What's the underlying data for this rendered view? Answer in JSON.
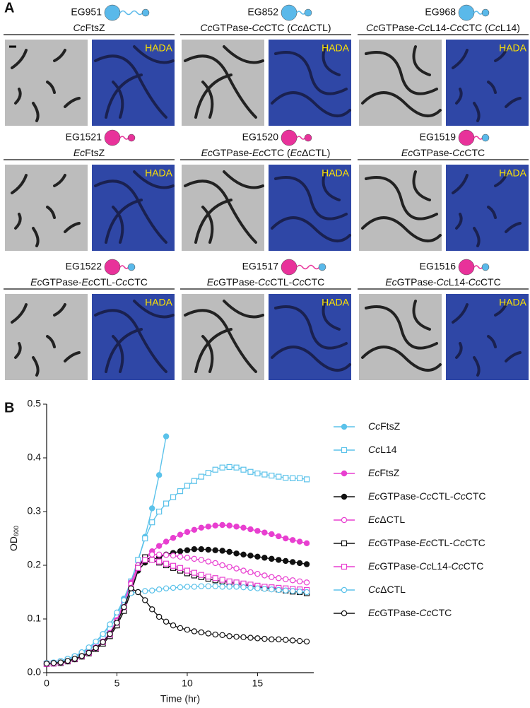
{
  "panel_a": {
    "label": "A",
    "strains": [
      {
        "id": "EG951",
        "construct": "CcFtsZ",
        "stain": "HADA"
      },
      {
        "id": "EG852",
        "construct": "CcGTPase-CcCTC (CcΔCTL)",
        "stain": "HADA"
      },
      {
        "id": "EG968",
        "construct": "CcGTPase-CcL14-CcCTC (CcL14)",
        "stain": "HADA"
      },
      {
        "id": "EG1521",
        "construct": "EcFtsZ",
        "stain": "HADA"
      },
      {
        "id": "EG1520",
        "construct": "EcGTPase-EcCTC (EcΔCTL)",
        "stain": "HADA"
      },
      {
        "id": "EG1519",
        "construct": "EcGTPase-CcCTC",
        "stain": "HADA"
      },
      {
        "id": "EG1522",
        "construct": "EcGTPase-EcCTL-CcCTC",
        "stain": "HADA"
      },
      {
        "id": "EG1517",
        "construct": "EcGTPase-CcCTL-CcCTC",
        "stain": "HADA"
      },
      {
        "id": "EG1516",
        "construct": "EcGTPase-CcL14-CcCTC",
        "stain": "HADA"
      }
    ]
  },
  "chart_data": {
    "type": "line",
    "panel_label": "B",
    "x_label": "Time (hr)",
    "y_label": "OD600",
    "xlim": [
      0,
      19
    ],
    "xticks": [
      0,
      5,
      10,
      15
    ],
    "ylim": [
      0,
      0.5
    ],
    "yticks": [
      {
        "value": 0,
        "label": "0.0"
      },
      0.1,
      0.2,
      0.3,
      0.4,
      0.5
    ],
    "x": [
      0,
      0.5,
      1,
      1.5,
      2,
      2.5,
      3,
      3.5,
      4,
      4.5,
      5,
      5.5,
      6,
      6.5,
      7,
      7.5,
      8,
      8.5,
      9,
      9.5,
      10,
      10.5,
      11,
      11.5,
      12,
      12.5,
      13,
      13.5,
      14,
      14.5,
      15,
      15.5,
      16,
      16.5,
      17,
      17.5,
      18,
      18.5
    ],
    "series": [
      {
        "name": "CcFtsZ",
        "color": "#5bc2ea",
        "marker": "circle",
        "filled": true,
        "values": [
          0.017,
          0.018,
          0.021,
          0.025,
          0.03,
          0.037,
          0.046,
          0.057,
          0.071,
          0.089,
          0.111,
          0.138,
          0.17,
          0.208,
          0.253,
          0.306,
          0.368,
          0.44,
          null,
          null,
          null,
          null,
          null,
          null,
          null,
          null,
          null,
          null,
          null,
          null,
          null,
          null,
          null,
          null,
          null,
          null,
          null,
          null
        ]
      },
      {
        "name": "CcL14",
        "color": "#5bc2ea",
        "marker": "square",
        "filled": false,
        "values": [
          0.017,
          0.018,
          0.02,
          0.024,
          0.029,
          0.035,
          0.043,
          0.053,
          0.066,
          0.083,
          0.105,
          0.135,
          0.17,
          0.21,
          0.25,
          0.28,
          0.3,
          0.315,
          0.327,
          0.338,
          0.348,
          0.357,
          0.365,
          0.372,
          0.378,
          0.382,
          0.383,
          0.382,
          0.378,
          0.374,
          0.371,
          0.369,
          0.367,
          0.365,
          0.363,
          0.362,
          0.362,
          0.36
        ]
      },
      {
        "name": "EcFtsZ",
        "color": "#e83fd0",
        "marker": "circle",
        "filled": true,
        "values": [
          0.016,
          0.017,
          0.019,
          0.022,
          0.026,
          0.031,
          0.038,
          0.047,
          0.058,
          0.074,
          0.098,
          0.13,
          0.168,
          0.198,
          0.215,
          0.226,
          0.236,
          0.244,
          0.251,
          0.257,
          0.262,
          0.266,
          0.27,
          0.272,
          0.274,
          0.275,
          0.274,
          0.272,
          0.27,
          0.267,
          0.264,
          0.261,
          0.258,
          0.254,
          0.25,
          0.247,
          0.244,
          0.241
        ]
      },
      {
        "name": "EcGTPase-CcCTL-CcCTC",
        "color": "#111111",
        "marker": "circle",
        "filled": true,
        "values": [
          0.016,
          0.017,
          0.018,
          0.021,
          0.025,
          0.03,
          0.036,
          0.044,
          0.054,
          0.068,
          0.088,
          0.115,
          0.15,
          0.19,
          0.205,
          0.21,
          0.215,
          0.22,
          0.223,
          0.226,
          0.228,
          0.23,
          0.23,
          0.229,
          0.228,
          0.227,
          0.225,
          0.222,
          0.22,
          0.218,
          0.216,
          0.214,
          0.212,
          0.21,
          0.208,
          0.206,
          0.204,
          0.202
        ]
      },
      {
        "name": "EcΔCTL",
        "color": "#e83fd0",
        "marker": "circle",
        "filled": false,
        "values": [
          0.016,
          0.017,
          0.019,
          0.022,
          0.026,
          0.031,
          0.038,
          0.047,
          0.058,
          0.073,
          0.096,
          0.128,
          0.165,
          0.2,
          0.215,
          0.22,
          0.22,
          0.219,
          0.218,
          0.216,
          0.214,
          0.212,
          0.21,
          0.207,
          0.204,
          0.2,
          0.197,
          0.194,
          0.19,
          0.187,
          0.184,
          0.181,
          0.178,
          0.176,
          0.174,
          0.172,
          0.17,
          0.168
        ]
      },
      {
        "name": "EcGTPase-EcCTL-CcCTC",
        "color": "#111111",
        "marker": "square",
        "filled": false,
        "values": [
          0.016,
          0.017,
          0.018,
          0.021,
          0.025,
          0.03,
          0.036,
          0.044,
          0.054,
          0.068,
          0.088,
          0.115,
          0.15,
          0.195,
          0.215,
          0.21,
          0.205,
          0.2,
          0.195,
          0.19,
          0.185,
          0.181,
          0.178,
          0.175,
          0.172,
          0.17,
          0.168,
          0.166,
          0.164,
          0.162,
          0.16,
          0.158,
          0.157,
          0.155,
          0.153,
          0.151,
          0.15,
          0.148
        ]
      },
      {
        "name": "EcGTPase-CcL14-CcCTC",
        "color": "#e83fd0",
        "marker": "square",
        "filled": false,
        "values": [
          0.016,
          0.017,
          0.019,
          0.022,
          0.026,
          0.031,
          0.037,
          0.046,
          0.057,
          0.071,
          0.093,
          0.122,
          0.158,
          0.195,
          0.21,
          0.21,
          0.207,
          0.203,
          0.199,
          0.195,
          0.19,
          0.186,
          0.182,
          0.179,
          0.176,
          0.173,
          0.17,
          0.168,
          0.166,
          0.164,
          0.162,
          0.16,
          0.159,
          0.158,
          0.157,
          0.156,
          0.155,
          0.154
        ]
      },
      {
        "name": "CcΔCTL",
        "color": "#5bc2ea",
        "marker": "circle",
        "filled": false,
        "values": [
          0.018,
          0.019,
          0.022,
          0.026,
          0.031,
          0.038,
          0.047,
          0.058,
          0.072,
          0.09,
          0.112,
          0.135,
          0.148,
          0.15,
          0.152,
          0.153,
          0.155,
          0.157,
          0.158,
          0.159,
          0.16,
          0.16,
          0.161,
          0.161,
          0.161,
          0.16,
          0.16,
          0.16,
          0.159,
          0.158,
          0.157,
          0.156,
          0.155,
          0.154,
          0.153,
          0.152,
          0.151,
          0.15
        ]
      },
      {
        "name": "EcGTPase-CcCTC",
        "color": "#111111",
        "marker": "circle",
        "filled": false,
        "values": [
          0.017,
          0.018,
          0.019,
          0.022,
          0.026,
          0.031,
          0.037,
          0.046,
          0.057,
          0.072,
          0.093,
          0.122,
          0.157,
          0.15,
          0.135,
          0.118,
          0.104,
          0.095,
          0.088,
          0.083,
          0.08,
          0.077,
          0.075,
          0.073,
          0.071,
          0.07,
          0.068,
          0.067,
          0.066,
          0.065,
          0.064,
          0.063,
          0.062,
          0.062,
          0.061,
          0.06,
          0.059,
          0.058
        ]
      }
    ]
  }
}
